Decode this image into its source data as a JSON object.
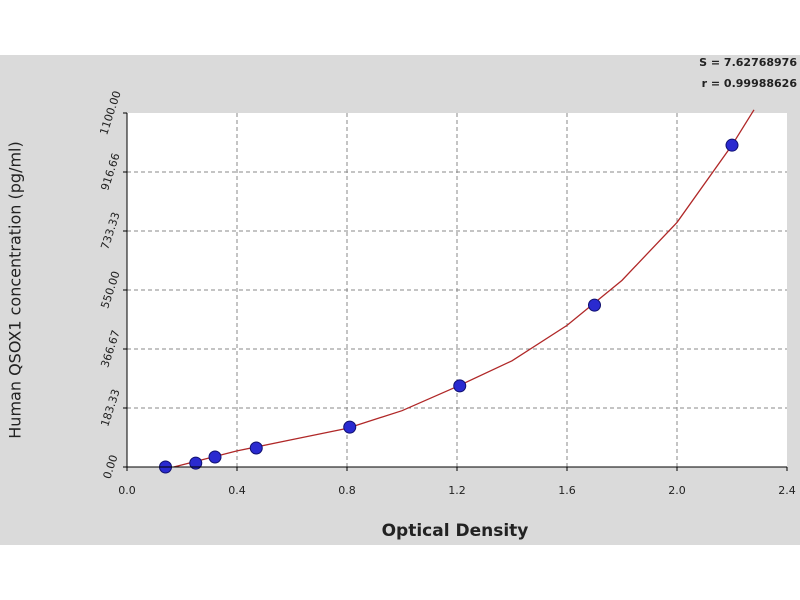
{
  "chart_data": {
    "type": "scatter",
    "xlabel": "Optical Density",
    "ylabel": "Human QSOX1 concentration (pg/ml)",
    "annotations": [
      "S = 7.62768976",
      "r = 0.99988626"
    ],
    "xlim": [
      0,
      2.4
    ],
    "ylim": [
      0,
      1100
    ],
    "xticks": [
      {
        "value": 0,
        "label": "0.0"
      },
      0.4,
      0.8,
      1.2,
      1.6,
      {
        "value": 2,
        "label": "2.0"
      },
      2.4
    ],
    "yticks": [
      {
        "value": 0,
        "label": "0.00"
      },
      {
        "value": 183.33,
        "label": "183.33"
      },
      {
        "value": 366.67,
        "label": "366.67"
      },
      {
        "value": 550,
        "label": "550.00"
      },
      {
        "value": 733.33,
        "label": "733.33"
      },
      {
        "value": 916.66,
        "label": "916.66"
      },
      {
        "value": 1100,
        "label": "1100.00"
      }
    ],
    "grid": true,
    "series": [
      {
        "style": "line",
        "color": "#b02828",
        "x": [
          0.17,
          0.4,
          0.6,
          0.8,
          1.0,
          1.2,
          1.4,
          1.6,
          1.8,
          2.0,
          2.2,
          2.28
        ],
        "values": [
          0,
          50,
          85,
          120,
          175,
          250,
          330,
          440,
          580,
          760,
          1000,
          1110
        ]
      },
      {
        "style": "markers",
        "color": "#2a2ad0",
        "x": [
          0.14,
          0.25,
          0.32,
          0.47,
          0.81,
          1.21,
          1.7,
          2.2
        ],
        "values": [
          0,
          12,
          31,
          59,
          124,
          252,
          503,
          1000
        ]
      }
    ]
  }
}
